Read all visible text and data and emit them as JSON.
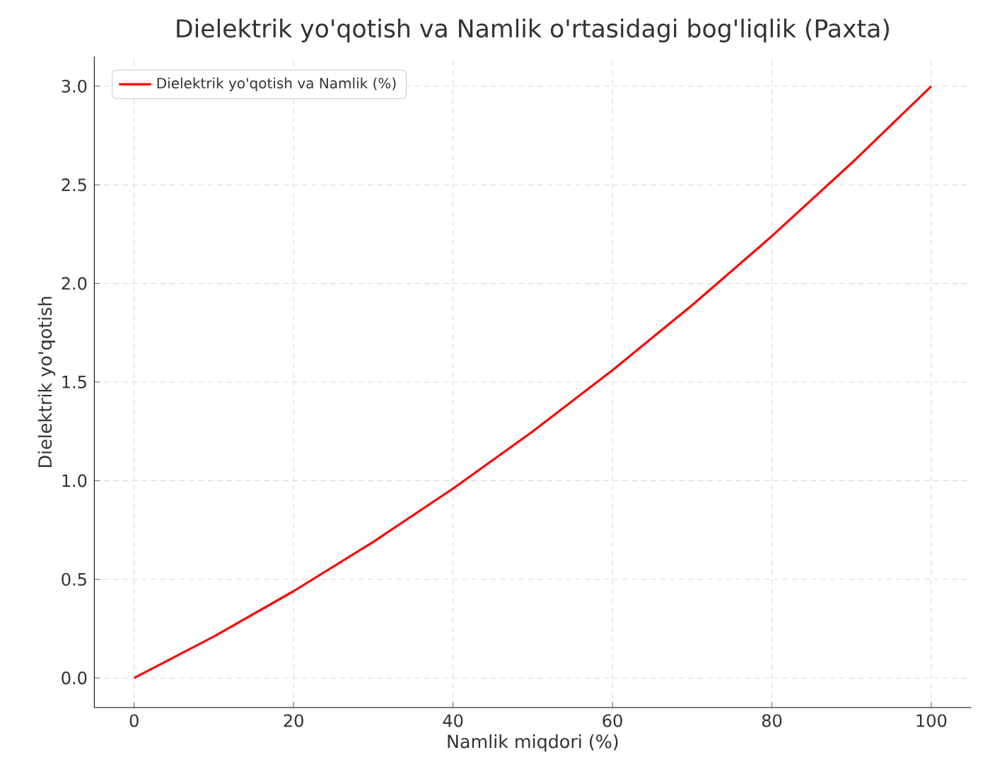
{
  "chart_data": {
    "type": "line",
    "title": "Dielektrik yo'qotish va Namlik o'rtasidagi bog'liqlik (Paxta)",
    "xlabel": "Namlik miqdori (%)",
    "ylabel": "Dielektrik yo'qotish",
    "x": [
      0,
      10,
      20,
      30,
      40,
      50,
      60,
      70,
      80,
      90,
      100
    ],
    "series": [
      {
        "name": "Dielektrik yo'qotish va Namlik (%)",
        "color": "#ff0000",
        "values": [
          0,
          0.21,
          0.44,
          0.69,
          0.96,
          1.25,
          1.56,
          1.89,
          2.24,
          2.61,
          3.0
        ]
      }
    ],
    "xlim": [
      -5,
      105
    ],
    "ylim": [
      -0.15,
      3.15
    ],
    "xticks": [
      0,
      20,
      40,
      60,
      80,
      100
    ],
    "yticks": [
      {
        "value": 0,
        "label": "0.0"
      },
      {
        "value": 0.5,
        "label": "0.5"
      },
      {
        "value": 1,
        "label": "1.0"
      },
      {
        "value": 1.5,
        "label": "1.5"
      },
      {
        "value": 2,
        "label": "2.0"
      },
      {
        "value": 2.5,
        "label": "2.5"
      },
      {
        "value": 3,
        "label": "3.0"
      }
    ],
    "grid": true,
    "legend": "top left",
    "marker": "none",
    "line_style": "solid"
  }
}
